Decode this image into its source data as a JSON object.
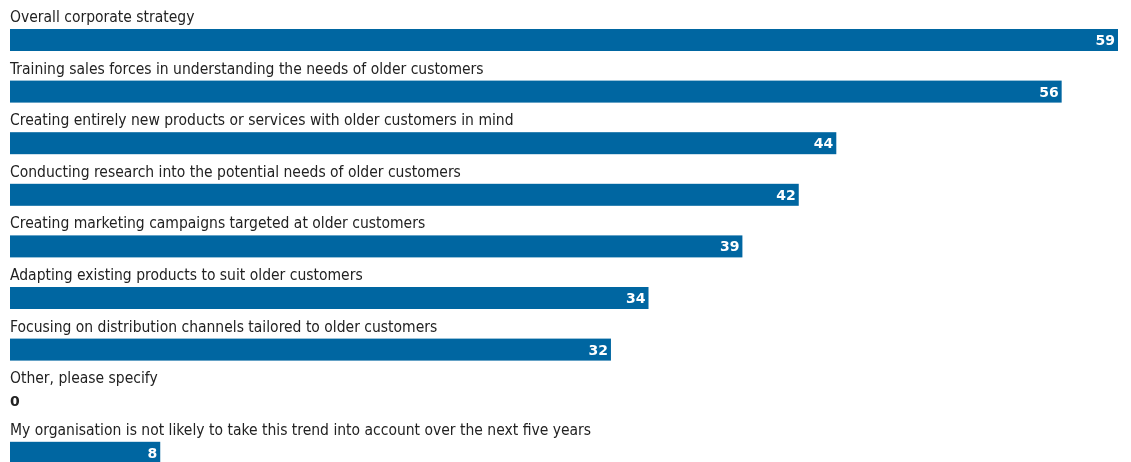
{
  "chart_data": {
    "type": "bar",
    "orientation": "horizontal",
    "categories": [
      "Overall corporate strategy",
      "Training sales forces in understanding the needs of older customers",
      "Creating entirely new products or services with older customers in mind",
      "Conducting research into the potential needs of older customers",
      "Creating marketing campaigns targeted at older customers",
      "Adapting existing products to suit older customers",
      "Focusing on distribution channels tailored to older customers",
      "Other, please specify",
      "My organisation is not likely to take this trend into account over the next five years"
    ],
    "values": [
      59,
      56,
      44,
      42,
      39,
      34,
      32,
      0,
      8
    ],
    "color": "#0066a1",
    "data_labels": true
  }
}
